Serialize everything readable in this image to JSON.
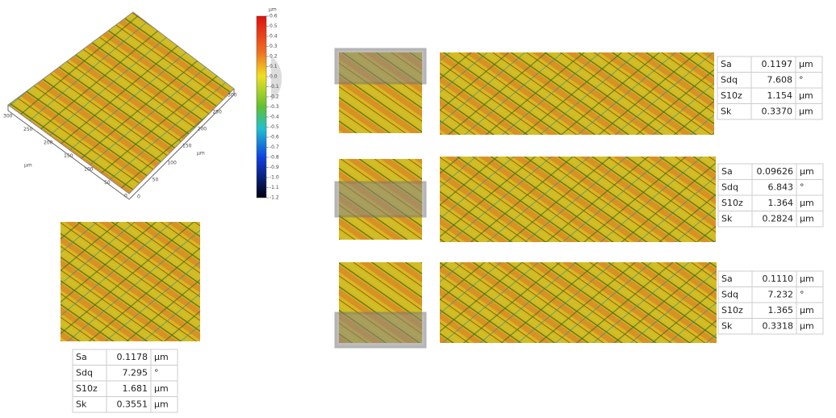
{
  "surface_3d": {
    "left_axis_ticks": [
      "300",
      "250",
      "200",
      "150",
      "100",
      "50",
      "0"
    ],
    "left_axis_unit": "µm",
    "right_axis_ticks": [
      "0",
      "50",
      "100",
      "150",
      "200",
      "250",
      "300"
    ],
    "right_axis_unit": "µm"
  },
  "color_scale": {
    "unit": "µm",
    "ticks": [
      "0.6",
      "0.5",
      "0.4",
      "0.3",
      "0.2",
      "0.1",
      "0.0",
      "-0.1",
      "-0.2",
      "-0.3",
      "-0.4",
      "-0.5",
      "-0.6",
      "-0.7",
      "-0.8",
      "-0.9",
      "-1.0",
      "-1.1",
      "-1.2"
    ]
  },
  "tables": [
    {
      "rows": [
        [
          "Sa",
          "0.1178",
          "µm"
        ],
        [
          "Sdq",
          "7.295",
          "°"
        ],
        [
          "S10z",
          "1.681",
          "µm"
        ],
        [
          "Sk",
          "0.3551",
          "µm"
        ]
      ]
    },
    {
      "rows": [
        [
          "Sa",
          "0.1197",
          "µm"
        ],
        [
          "Sdq",
          "7.608",
          "°"
        ],
        [
          "S10z",
          "1.154",
          "µm"
        ],
        [
          "Sk",
          "0.3370",
          "µm"
        ]
      ]
    },
    {
      "rows": [
        [
          "Sa",
          "0.09626",
          "µm"
        ],
        [
          "Sdq",
          "6.843",
          "°"
        ],
        [
          "S10z",
          "1.364",
          "µm"
        ],
        [
          "Sk",
          "0.2824",
          "µm"
        ]
      ]
    },
    {
      "rows": [
        [
          "Sa",
          "0.1110",
          "µm"
        ],
        [
          "Sdq",
          "7.232",
          "°"
        ],
        [
          "S10z",
          "1.365",
          "µm"
        ],
        [
          "Sk",
          "0.3318",
          "µm"
        ]
      ]
    }
  ]
}
